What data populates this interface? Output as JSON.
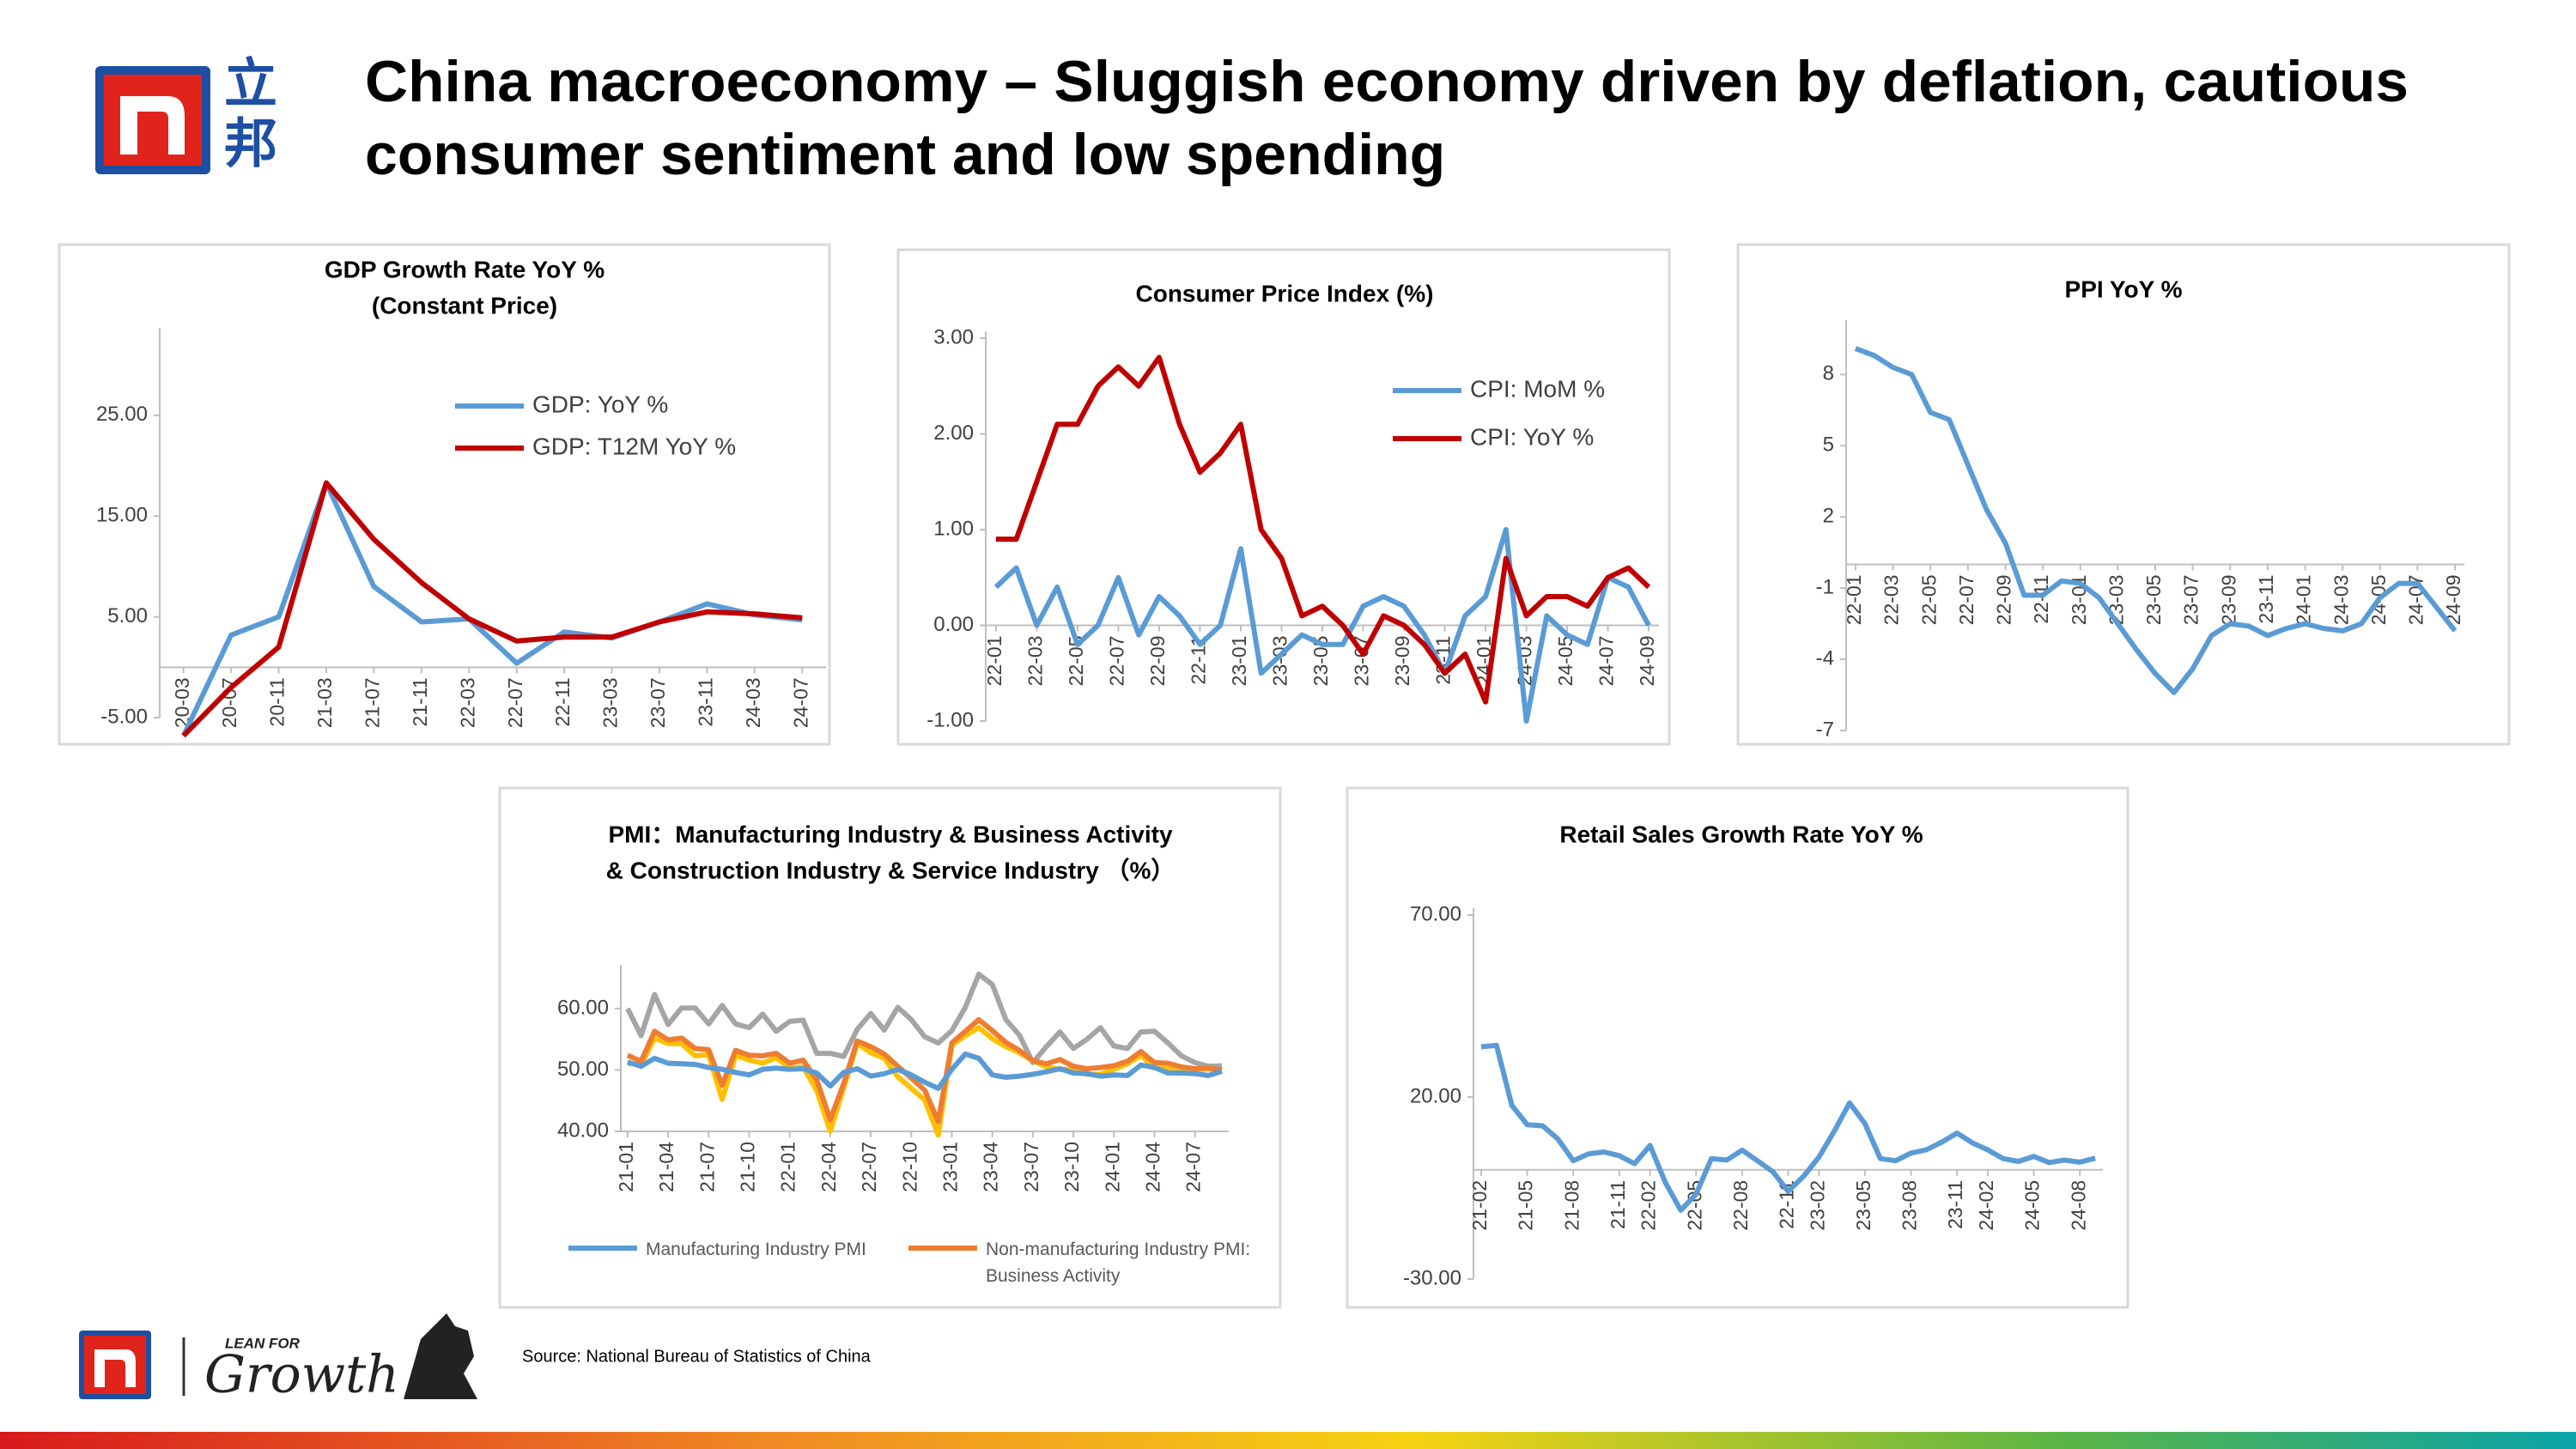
{
  "header": {
    "title": [
      "China macroeconomy – Sluggish economy driven by deflation, cautious",
      "consumer sentiment and low spending"
    ]
  },
  "brand": {
    "chinese": [
      "立",
      "邦"
    ],
    "tagline": "LEAN FOR",
    "script": "Growth"
  },
  "source": "Source: National Bureau of Statistics of China",
  "chart_data": [
    {
      "type": "line",
      "title": [
        "GDP Growth Rate YoY %",
        "(Constant Price)"
      ],
      "categories": [
        "20-03",
        "20-07",
        "20-11",
        "21-03",
        "21-07",
        "21-11",
        "22-03",
        "22-07",
        "22-11",
        "23-03",
        "23-07",
        "23-11",
        "24-03",
        "24-07"
      ],
      "series": [
        {
          "name": "GDP: YoY %",
          "color": "#5b9bd5",
          "values": [
            -6.8,
            3.2,
            5.0,
            18.3,
            8.0,
            4.5,
            4.8,
            0.4,
            3.5,
            2.9,
            4.5,
            6.3,
            5.2,
            4.7
          ]
        },
        {
          "name": "GDP: T12M YoY %",
          "color": "#c00000",
          "values": [
            -6.8,
            -2.0,
            2.0,
            18.3,
            12.7,
            8.4,
            4.8,
            2.6,
            3.0,
            3.0,
            4.5,
            5.5,
            5.3,
            4.9
          ]
        }
      ],
      "ylim": [
        -5,
        33
      ],
      "yticks": [
        {
          "value": -5,
          "label": "-5.00"
        },
        {
          "value": 5,
          "label": "5.00"
        },
        {
          "value": 15,
          "label": "15.00"
        },
        {
          "value": 25,
          "label": "25.00"
        }
      ]
    },
    {
      "type": "line",
      "title": [
        "Consumer Price Index (%)"
      ],
      "categories": [
        "22-01",
        null,
        "22-03",
        null,
        "22-05",
        null,
        "22-07",
        null,
        "22-09",
        null,
        "22-11",
        null,
        "23-01",
        null,
        "23-03",
        null,
        "23-05",
        null,
        "23-07",
        null,
        "23-09",
        null,
        "23-11",
        null,
        "24-01",
        null,
        "24-03",
        null,
        "24-05",
        null,
        "24-07",
        null,
        "24-09"
      ],
      "series": [
        {
          "name": "CPI: MoM %",
          "color": "#5b9bd5",
          "values": [
            0.4,
            0.6,
            0.0,
            0.4,
            -0.2,
            0.0,
            0.5,
            -0.1,
            0.3,
            0.1,
            -0.2,
            0.0,
            0.8,
            -0.5,
            -0.3,
            -0.1,
            -0.2,
            -0.2,
            0.2,
            0.3,
            0.2,
            -0.1,
            -0.5,
            0.1,
            0.3,
            1.0,
            -1.0,
            0.1,
            -0.1,
            -0.2,
            0.5,
            0.4,
            0.0
          ]
        },
        {
          "name": "CPI: YoY %",
          "color": "#c00000",
          "values": [
            0.9,
            0.9,
            1.5,
            2.1,
            2.1,
            2.5,
            2.7,
            2.5,
            2.8,
            2.1,
            1.6,
            1.8,
            2.1,
            1.0,
            0.7,
            0.1,
            0.2,
            0.0,
            -0.3,
            0.1,
            0.0,
            -0.2,
            -0.5,
            -0.3,
            -0.8,
            0.7,
            0.1,
            0.3,
            0.3,
            0.2,
            0.5,
            0.6,
            0.4
          ]
        }
      ],
      "ylim": [
        -1,
        3
      ],
      "yticks": [
        {
          "value": -1,
          "label": "-1.00"
        },
        {
          "value": 0,
          "label": "0.00"
        },
        {
          "value": 1,
          "label": "1.00"
        },
        {
          "value": 2,
          "label": "2.00"
        },
        {
          "value": 3,
          "label": "3.00"
        }
      ]
    },
    {
      "type": "line",
      "title": [
        "PPI YoY %"
      ],
      "categories": [
        "22-01",
        null,
        "22-03",
        null,
        "22-05",
        null,
        "22-07",
        null,
        "22-09",
        null,
        "22-11",
        null,
        "23-01",
        null,
        "23-03",
        null,
        "23-05",
        null,
        "23-07",
        null,
        "23-09",
        null,
        "23-11",
        null,
        "24-01",
        null,
        "24-03",
        null,
        "24-05",
        null,
        "24-07",
        null,
        "24-09"
      ],
      "series": [
        {
          "color": "#5b9bd5",
          "values": [
            9.1,
            8.8,
            8.3,
            8.0,
            6.4,
            6.1,
            4.2,
            2.3,
            0.9,
            -1.3,
            -1.3,
            -0.7,
            -0.8,
            -1.4,
            -2.5,
            -3.6,
            -4.6,
            -5.4,
            -4.4,
            -3.0,
            -2.5,
            -2.6,
            -3.0,
            -2.7,
            -2.5,
            -2.7,
            -2.8,
            -2.5,
            -1.4,
            -0.8,
            -0.8,
            -1.8,
            -2.8
          ]
        }
      ],
      "ylim": [
        -7,
        10
      ],
      "yticks": [
        -7,
        -4,
        -1,
        2,
        5,
        8
      ]
    },
    {
      "type": "line",
      "title": [
        "PMI：Manufacturing Industry & Business Activity",
        "& Construction Industry & Service Industry （%）"
      ],
      "categories": [
        "21-01",
        null,
        null,
        "21-04",
        null,
        null,
        "21-07",
        null,
        null,
        "21-10",
        null,
        null,
        "22-01",
        null,
        null,
        "22-04",
        null,
        null,
        "22-07",
        null,
        null,
        "22-10",
        null,
        null,
        "23-01",
        null,
        null,
        "23-04",
        null,
        null,
        "23-07",
        null,
        null,
        "23-10",
        null,
        null,
        "24-01",
        null,
        null,
        "24-04",
        null,
        null,
        "24-07",
        null,
        null
      ],
      "series": [
        {
          "color": "#a5a5a5",
          "values": [
            60.0,
            55.6,
            62.3,
            57.4,
            60.1,
            60.1,
            57.5,
            60.5,
            57.5,
            56.9,
            59.1,
            56.3,
            57.9,
            58.1,
            52.7,
            52.7,
            52.2,
            56.6,
            59.2,
            56.5,
            60.2,
            58.2,
            55.4,
            54.4,
            56.4,
            60.2,
            65.6,
            63.9,
            58.2,
            55.7,
            51.2,
            53.8,
            56.2,
            53.5,
            55.0,
            56.9,
            53.9,
            53.5,
            56.2,
            56.3,
            54.4,
            52.3,
            51.2,
            50.6,
            50.7
          ]
        },
        {
          "color": "#ffc000",
          "values": [
            51.1,
            50.8,
            55.2,
            54.3,
            54.3,
            52.3,
            52.5,
            45.2,
            52.4,
            51.6,
            51.1,
            52.0,
            50.3,
            50.5,
            46.7,
            40.0,
            47.1,
            54.3,
            52.8,
            51.9,
            48.9,
            47.0,
            45.1,
            39.4,
            54.0,
            55.6,
            56.9,
            55.1,
            53.8,
            52.8,
            51.5,
            50.5,
            50.1,
            50.1,
            49.3,
            49.3,
            50.1,
            51.0,
            52.4,
            50.3,
            50.2,
            50.2,
            50.0,
            50.2,
            49.9
          ]
        },
        {
          "name": "Non-manufacturing Industry PMI: Business Activity",
          "color": "#ed7d31",
          "values": [
            52.4,
            51.4,
            56.3,
            54.9,
            55.2,
            53.5,
            53.3,
            47.5,
            53.2,
            52.4,
            52.3,
            52.7,
            51.1,
            51.6,
            48.4,
            41.9,
            47.8,
            54.7,
            53.8,
            52.6,
            50.6,
            48.7,
            46.7,
            41.6,
            54.4,
            56.3,
            58.2,
            56.4,
            54.5,
            53.2,
            51.5,
            51.0,
            51.7,
            50.6,
            50.2,
            50.4,
            50.7,
            51.4,
            53.0,
            51.2,
            51.1,
            50.5,
            50.2,
            50.3,
            50.0
          ]
        },
        {
          "name": "Manufacturing Industry PMI",
          "color": "#5b9bd5",
          "values": [
            51.3,
            50.6,
            51.9,
            51.1,
            51.0,
            50.9,
            50.4,
            50.1,
            49.6,
            49.2,
            50.1,
            50.3,
            50.1,
            50.2,
            49.5,
            47.4,
            49.6,
            50.2,
            49.0,
            49.4,
            50.1,
            49.2,
            48.0,
            47.0,
            50.1,
            52.6,
            51.9,
            49.2,
            48.8,
            49.0,
            49.3,
            49.7,
            50.2,
            49.5,
            49.4,
            49.0,
            49.2,
            49.1,
            50.8,
            50.4,
            49.5,
            49.5,
            49.4,
            49.1,
            49.8
          ]
        }
      ],
      "ylim": [
        40,
        66
      ],
      "yticks": [
        {
          "value": 40,
          "label": "40.00"
        },
        {
          "value": 50,
          "label": "50.00"
        },
        {
          "value": 60,
          "label": "60.00"
        }
      ]
    },
    {
      "type": "line",
      "title": [
        "Retail Sales Growth Rate YoY %"
      ],
      "categories": [
        "21-02",
        null,
        null,
        "21-05",
        null,
        null,
        "21-08",
        null,
        null,
        "21-11",
        null,
        "22-02",
        null,
        null,
        "22-05",
        null,
        null,
        "22-08",
        null,
        null,
        "22-11",
        null,
        "23-02",
        null,
        null,
        "23-05",
        null,
        null,
        "23-08",
        null,
        null,
        "23-11",
        null,
        "24-02",
        null,
        null,
        "24-05",
        null,
        null,
        "24-08",
        null
      ],
      "series": [
        {
          "color": "#5b9bd5",
          "values": [
            33.8,
            34.2,
            17.7,
            12.4,
            12.1,
            8.5,
            2.5,
            4.4,
            4.9,
            3.9,
            1.7,
            6.7,
            -3.5,
            -11.1,
            -6.7,
            3.1,
            2.7,
            5.4,
            2.5,
            -0.5,
            -5.9,
            -1.8,
            3.5,
            10.6,
            18.4,
            12.7,
            3.1,
            2.5,
            4.6,
            5.5,
            7.6,
            10.1,
            7.4,
            5.5,
            3.1,
            2.3,
            3.7,
            2.0,
            2.7,
            2.1,
            3.2
          ]
        }
      ],
      "ylim": [
        -30,
        70
      ],
      "yticks": [
        {
          "value": -30,
          "label": "-30.00"
        },
        {
          "value": 20,
          "label": "20.00"
        },
        {
          "value": 70,
          "label": "70.00"
        }
      ]
    }
  ]
}
